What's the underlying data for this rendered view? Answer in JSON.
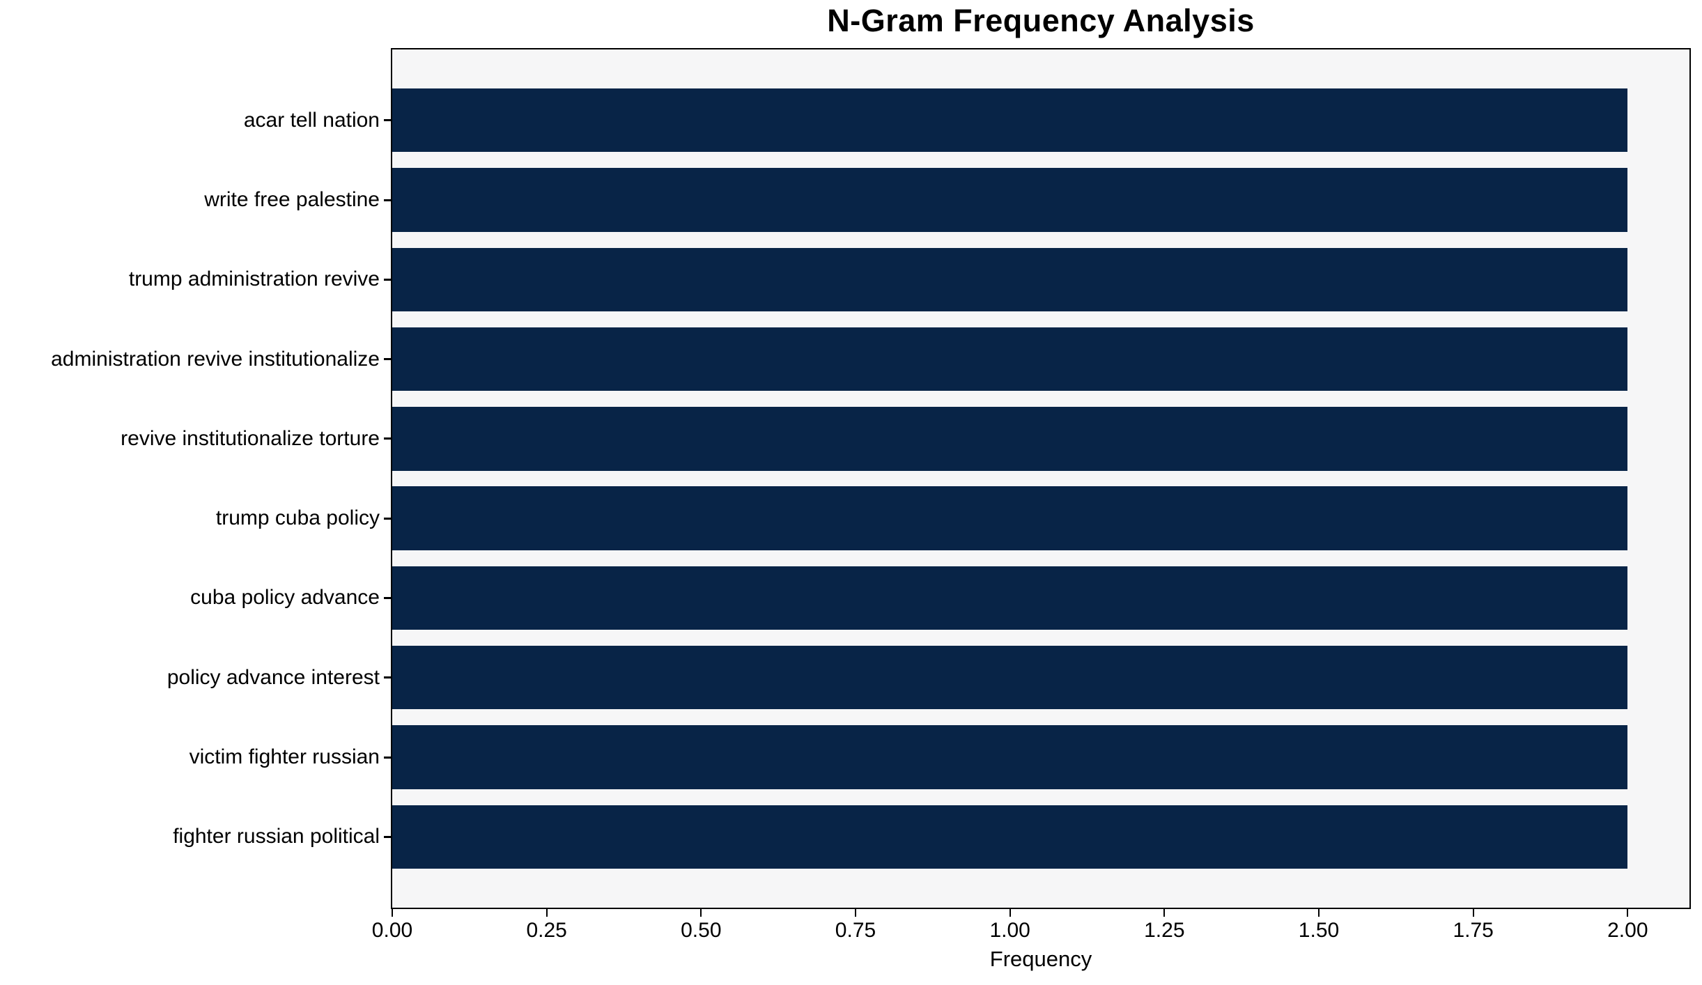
{
  "chart_data": {
    "type": "bar",
    "orientation": "horizontal",
    "title": "N-Gram Frequency Analysis",
    "xlabel": "Frequency",
    "ylabel": "",
    "categories": [
      "acar tell nation",
      "write free palestine",
      "trump administration revive",
      "administration revive institutionalize",
      "revive institutionalize torture",
      "trump cuba policy",
      "cuba policy advance",
      "policy advance interest",
      "victim fighter russian",
      "fighter russian political"
    ],
    "values": [
      2,
      2,
      2,
      2,
      2,
      2,
      2,
      2,
      2,
      2
    ],
    "xlim": [
      0,
      2.1
    ],
    "xticks": [
      0.0,
      0.25,
      0.5,
      0.75,
      1.0,
      1.25,
      1.5,
      1.75,
      2.0
    ],
    "xtick_labels": [
      "0.00",
      "0.25",
      "0.50",
      "0.75",
      "1.00",
      "1.25",
      "1.50",
      "1.75",
      "2.00"
    ],
    "bar_color": "#082447",
    "axes_background": "#f6f6f7",
    "figure_background": "#ffffff",
    "spine_color": "#000000",
    "text_color": "#000000",
    "grid": false,
    "legend": null,
    "bar_fraction": 0.8
  }
}
